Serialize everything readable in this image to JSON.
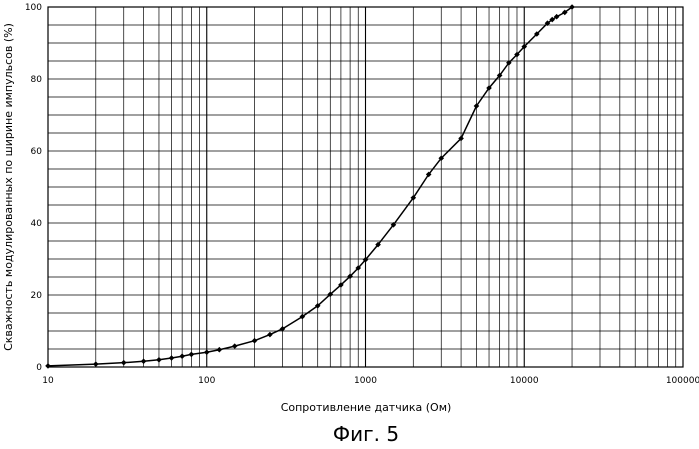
{
  "chart_data": {
    "type": "line",
    "xscale": "log",
    "xlabel": "Сопротивление датчика (Ом)",
    "ylabel": "Скважность модулированных по ширине импульсов (%)",
    "xlim": [
      10,
      100000
    ],
    "ylim": [
      0,
      100
    ],
    "x_ticks": [
      10,
      100,
      1000,
      10000,
      100000
    ],
    "x_tick_labels": [
      "10",
      "100",
      "1000",
      "10000",
      "100000"
    ],
    "y_ticks": [
      0,
      20,
      40,
      60,
      80,
      100
    ],
    "y_tick_labels": [
      "0",
      "20",
      "40",
      "60",
      "80",
      "100"
    ],
    "grid": true,
    "line_color": "#000000",
    "marker": "diamond",
    "series": [
      {
        "x": [
          10,
          20,
          30,
          40,
          50,
          60,
          70,
          80,
          100,
          120,
          150,
          200,
          250,
          300,
          400,
          500,
          600,
          700,
          800,
          900,
          1000,
          1200,
          1500,
          2000,
          2500,
          3000,
          4000,
          5000,
          6000,
          7000,
          8000,
          9000,
          10000,
          12000,
          14000,
          15000,
          16000,
          18000,
          20000
        ],
        "y": [
          0.3,
          0.8,
          1.2,
          1.6,
          2.0,
          2.5,
          3.0,
          3.5,
          4.1,
          4.8,
          5.8,
          7.3,
          9.0,
          10.6,
          14.0,
          17.0,
          20.2,
          22.8,
          25.2,
          27.5,
          29.8,
          34.0,
          39.5,
          47.0,
          53.5,
          58.0,
          63.5,
          72.5,
          77.5,
          81.0,
          84.5,
          86.8,
          89.0,
          92.5,
          95.5,
          96.5,
          97.3,
          98.5,
          100.0
        ]
      }
    ]
  },
  "caption": "Фиг. 5"
}
